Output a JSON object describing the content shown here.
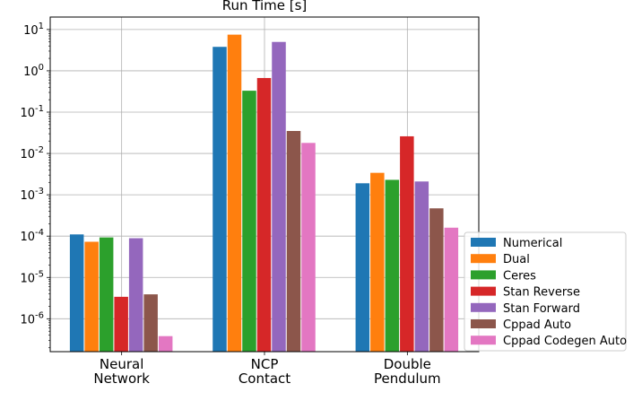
{
  "chart_data": {
    "type": "bar",
    "title": "Run Time [s]",
    "xlabel": "",
    "ylabel": "",
    "yscale": "log",
    "ylim": [
      1.6e-07,
      20
    ],
    "yticks": [
      {
        "value": 1e-06,
        "base": "10",
        "exp": "-6"
      },
      {
        "value": 1e-05,
        "base": "10",
        "exp": "-5"
      },
      {
        "value": 0.0001,
        "base": "10",
        "exp": "-4"
      },
      {
        "value": 0.001,
        "base": "10",
        "exp": "-3"
      },
      {
        "value": 0.01,
        "base": "10",
        "exp": "-2"
      },
      {
        "value": 0.1,
        "base": "10",
        "exp": "-1"
      },
      {
        "value": 1,
        "base": "10",
        "exp": "0"
      },
      {
        "value": 10,
        "base": "10",
        "exp": "1"
      }
    ],
    "grid": true,
    "legend_position": "right",
    "categories": [
      [
        "Neural",
        "Network"
      ],
      [
        "NCP",
        "Contact"
      ],
      [
        "Double",
        "Pendulum"
      ]
    ],
    "series": [
      {
        "name": "Numerical",
        "color": "#1f77b4",
        "values": [
          0.00011,
          3.8,
          0.0019
        ]
      },
      {
        "name": "Dual",
        "color": "#ff7f0e",
        "values": [
          7.3e-05,
          7.5,
          0.0034
        ]
      },
      {
        "name": "Ceres",
        "color": "#2ca02c",
        "values": [
          9.3e-05,
          0.33,
          0.0023
        ]
      },
      {
        "name": "Stan Reverse",
        "color": "#d62728",
        "values": [
          3.4e-06,
          0.67,
          0.026
        ]
      },
      {
        "name": "Stan Forward",
        "color": "#9467bd",
        "values": [
          8.9e-05,
          5.0,
          0.0021
        ]
      },
      {
        "name": "Cppad Auto",
        "color": "#8c564b",
        "values": [
          3.9e-06,
          0.035,
          0.00047
        ]
      },
      {
        "name": "Cppad Codegen Auto",
        "color": "#e377c2",
        "values": [
          3.8e-07,
          0.018,
          0.00016
        ]
      }
    ]
  }
}
